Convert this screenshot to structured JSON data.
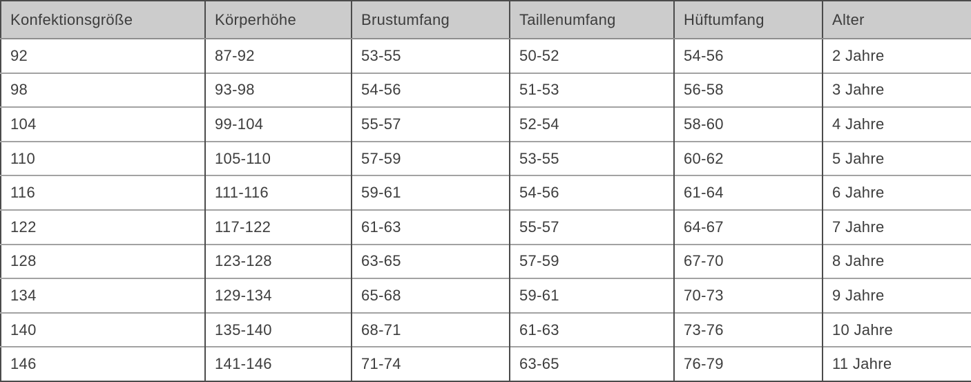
{
  "table": {
    "title": "size-chart",
    "headers": [
      "Konfektionsgröße",
      "Körperhöhe",
      "Brustumfang",
      "Taillenumfang",
      "Hüftumfang",
      "Alter"
    ],
    "rows": [
      [
        "92",
        "87-92",
        "53-55",
        "50-52",
        "54-56",
        "2 Jahre"
      ],
      [
        "98",
        "93-98",
        "54-56",
        "51-53",
        "56-58",
        "3 Jahre"
      ],
      [
        "104",
        "99-104",
        "55-57",
        "52-54",
        "58-60",
        "4 Jahre"
      ],
      [
        "110",
        "105-110",
        "57-59",
        "53-55",
        "60-62",
        "5 Jahre"
      ],
      [
        "116",
        "111-116",
        "59-61",
        "54-56",
        "61-64",
        "6 Jahre"
      ],
      [
        "122",
        "117-122",
        "61-63",
        "55-57",
        "64-67",
        "7 Jahre"
      ],
      [
        "128",
        "123-128",
        "63-65",
        "57-59",
        "67-70",
        "8 Jahre"
      ],
      [
        "134",
        "129-134",
        "65-68",
        "59-61",
        "70-73",
        "9 Jahre"
      ],
      [
        "140",
        "135-140",
        "68-71",
        "61-63",
        "73-76",
        "10 Jahre"
      ],
      [
        "146",
        "141-146",
        "71-74",
        "63-65",
        "76-79",
        "11 Jahre"
      ]
    ],
    "colors": {
      "header_bg": "#cccccc",
      "text": "#3d3d3d",
      "frame_border": "#4b4b4b",
      "row_border": "#a2a2a2",
      "header_bottom_border": "#8d8d8d"
    }
  }
}
